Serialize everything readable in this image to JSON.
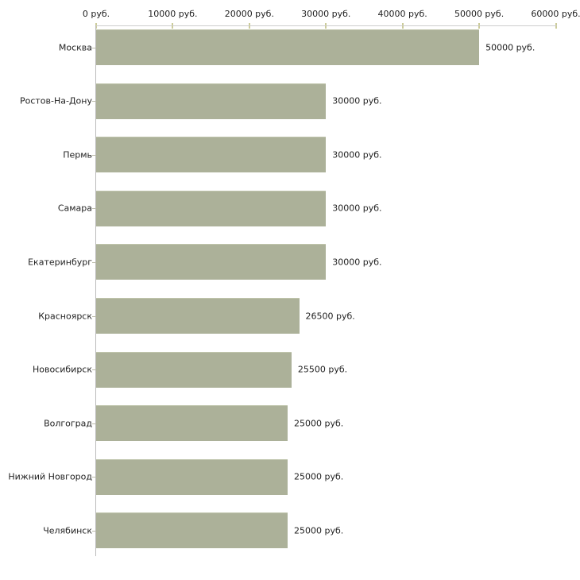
{
  "chart_data": {
    "type": "bar",
    "orientation": "horizontal",
    "title": "",
    "xlabel": "",
    "ylabel": "",
    "unit": "руб.",
    "categories": [
      "Москва",
      "Ростов-На-Дону",
      "Пермь",
      "Самара",
      "Екатеринбург",
      "Красноярск",
      "Новосибирск",
      "Волгоград",
      "Нижний Новгород",
      "Челябинск"
    ],
    "values": [
      50000,
      30000,
      30000,
      30000,
      30000,
      26500,
      25500,
      25000,
      25000,
      25000
    ],
    "value_labels": [
      "50000 руб.",
      "30000 руб.",
      "30000 руб.",
      "30000 руб.",
      "30000 руб.",
      "26500 руб.",
      "25500 руб.",
      "25000 руб.",
      "25000 руб.",
      "25000 руб."
    ],
    "x_tick_values": [
      0,
      10000,
      20000,
      30000,
      40000,
      50000,
      60000
    ],
    "x_tick_labels": [
      "0 руб.",
      "10000 руб.",
      "20000 руб.",
      "30000 руб.",
      "40000 руб.",
      "50000 руб.",
      "60000 руб."
    ],
    "xlim": [
      0,
      60000
    ],
    "axis_position": "top",
    "grid": false,
    "legend": false,
    "colors": {
      "bar_fill": "#ACB199",
      "x_axis_line": "#CCCCCC",
      "x_tick_mark": "#CCCC99",
      "y_axis_line": "#BBBBBB",
      "y_tick_mark": "#BBBBAA",
      "text": "#222222",
      "background": "#FFFFFF"
    }
  }
}
